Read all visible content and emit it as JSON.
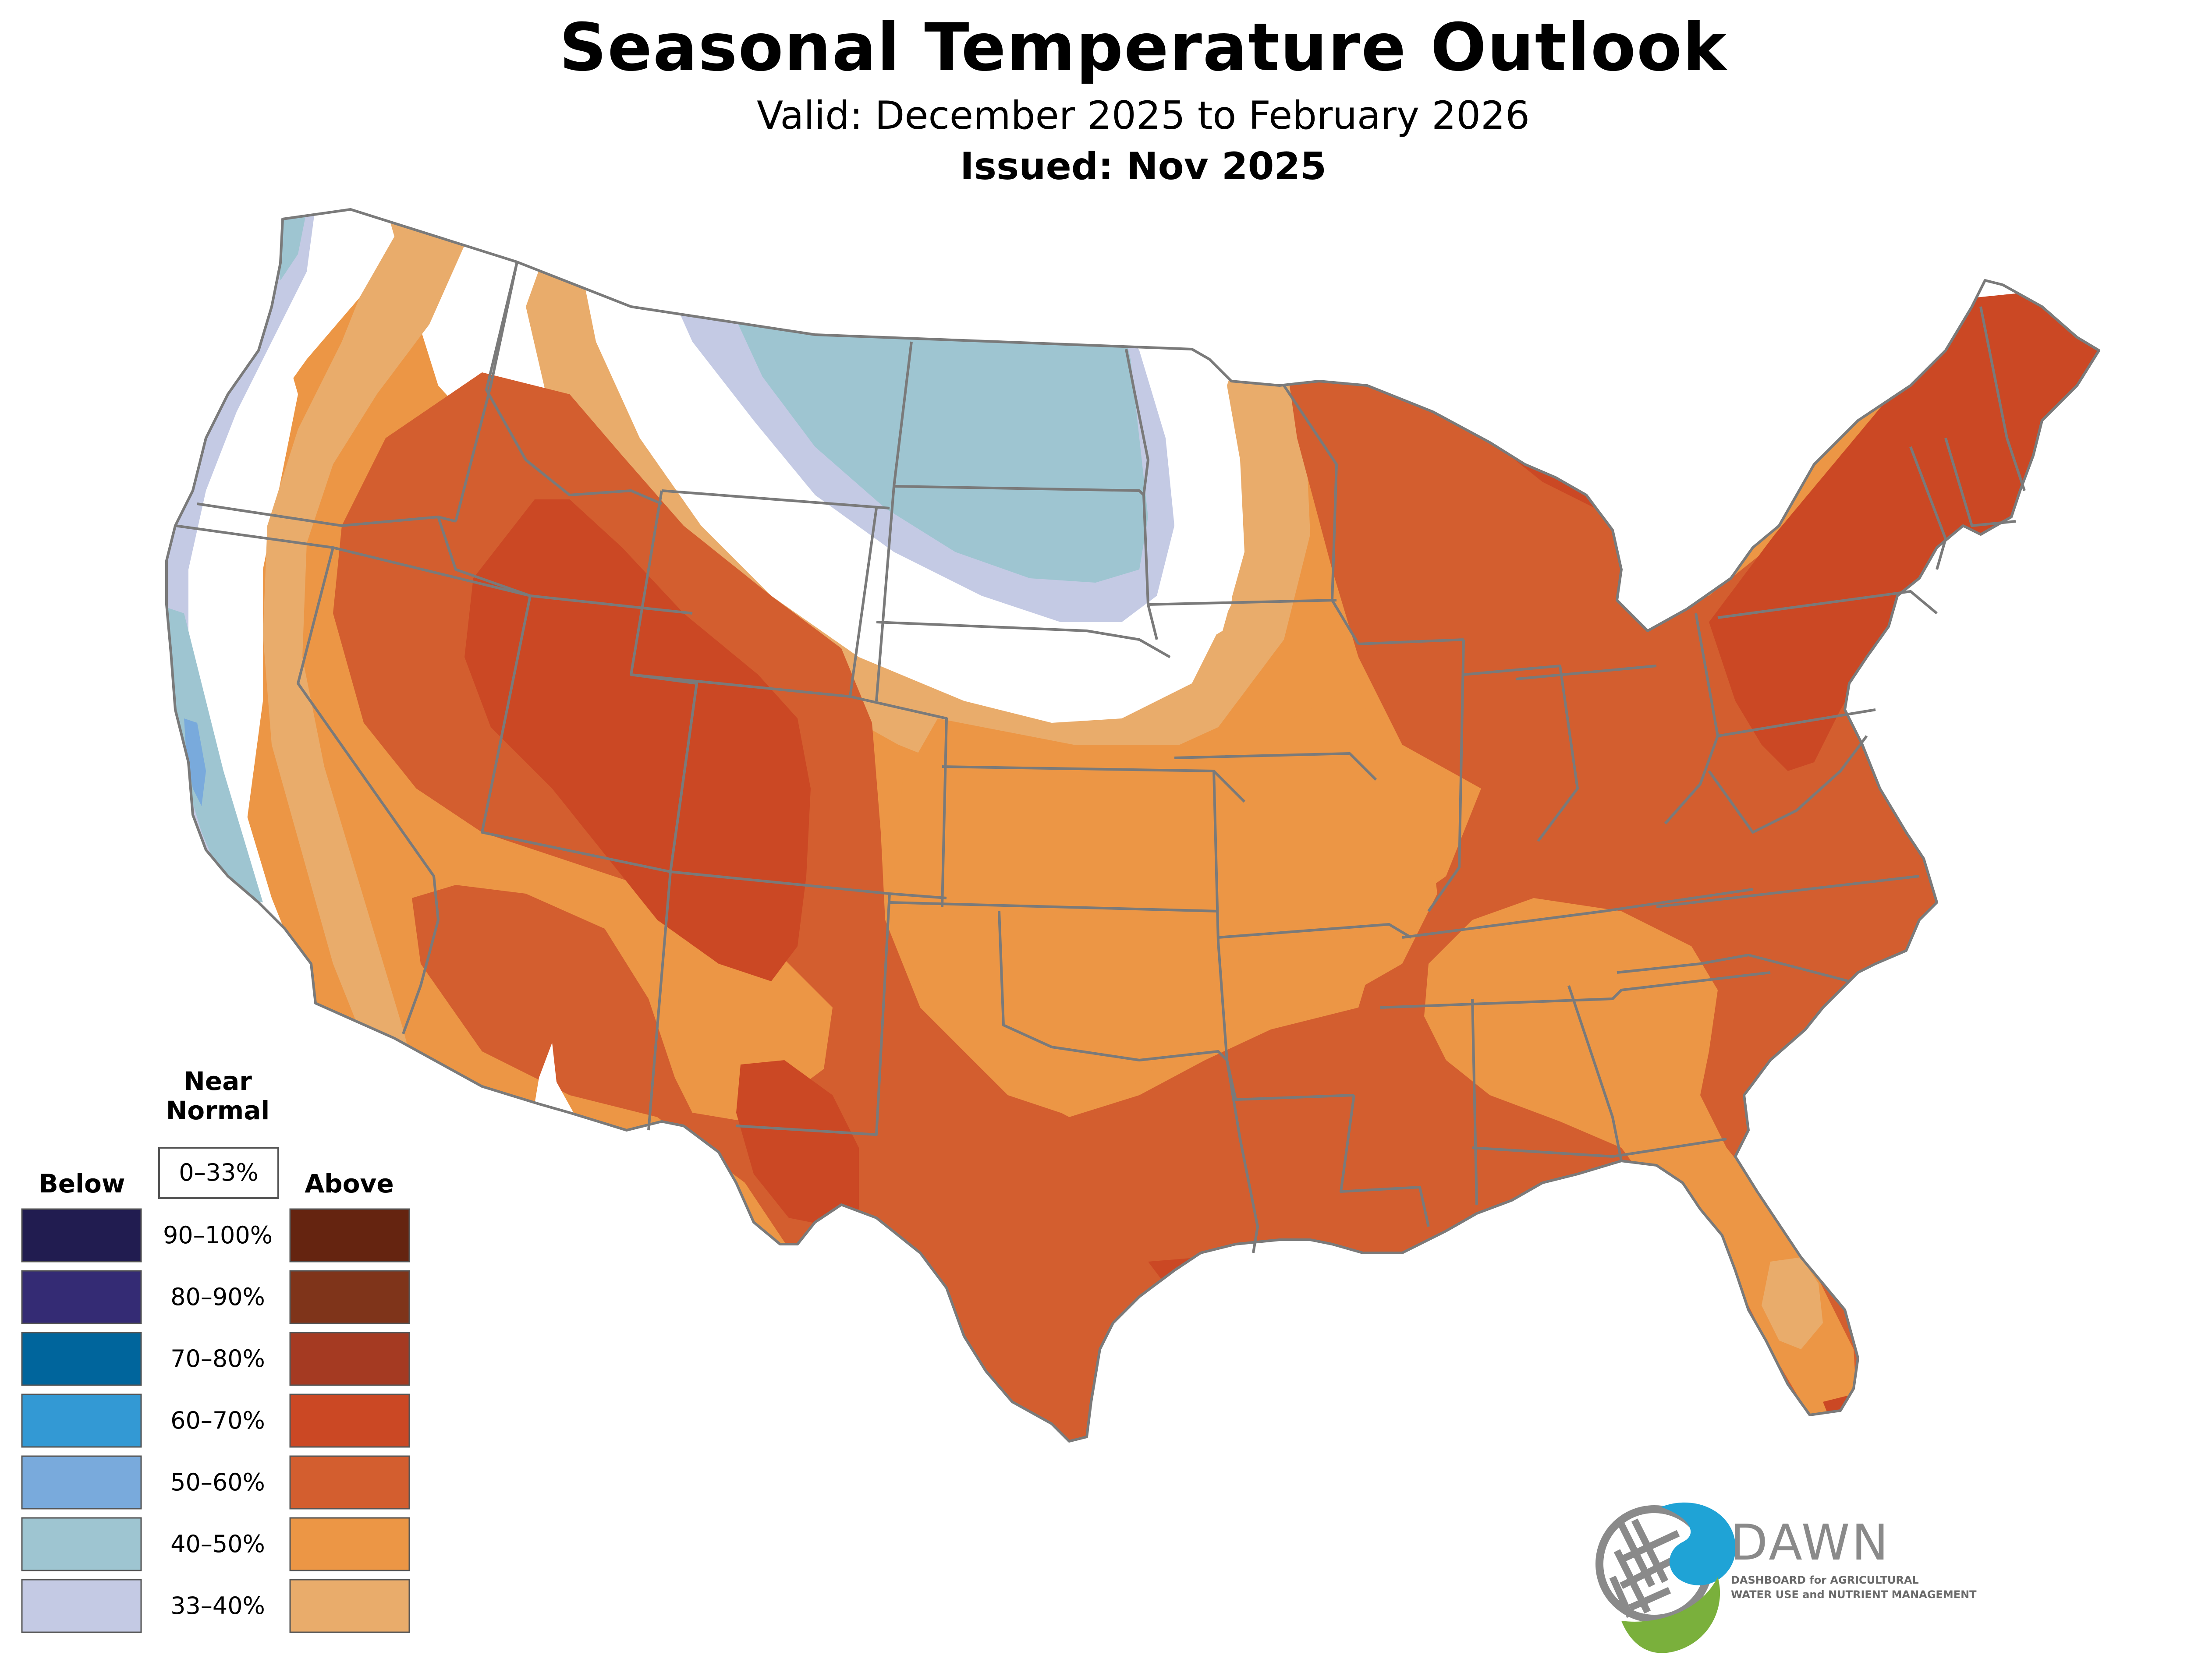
{
  "header": {
    "title": "Seasonal Temperature Outlook",
    "valid": "Valid: December 2025 to February 2026",
    "issued": "Issued: Nov 2025"
  },
  "legend": {
    "near_normal_line1": "Near",
    "near_normal_line2": "Normal",
    "near_normal_range": "0–33%",
    "below_label": "Below",
    "above_label": "Above",
    "rows": [
      {
        "range": "90–100%",
        "below_color": "#211c50",
        "above_color": "#652410"
      },
      {
        "range": "80–90%",
        "below_color": "#342b74",
        "above_color": "#7f341a"
      },
      {
        "range": "70–80%",
        "below_color": "#00659c",
        "above_color": "#a53a22"
      },
      {
        "range": "60–70%",
        "below_color": "#3399d4",
        "above_color": "#cb4824"
      },
      {
        "range": "50–60%",
        "below_color": "#79aadc",
        "above_color": "#d35e2f"
      },
      {
        "range": "40–50%",
        "below_color": "#9ec5d1",
        "above_color": "#ec9645"
      },
      {
        "range": "33–40%",
        "below_color": "#c4cae4",
        "above_color": "#e9ac6b"
      }
    ]
  },
  "map": {
    "colors": {
      "near_normal": "#ffffff",
      "below_33_40": "#c4cae4",
      "below_40_50": "#9ec5d1",
      "below_50_60": "#79aadc",
      "above_33_40": "#e9ac6b",
      "above_40_50": "#ec9645",
      "above_50_60": "#d35e2f",
      "above_60_70": "#cb4824",
      "border": "#7a7a7a"
    }
  },
  "logo": {
    "name": "DAWN",
    "tagline_line1": "DASHBOARD for AGRICULTURAL",
    "tagline_line2": "WATER USE and NUTRIENT MANAGEMENT",
    "colors": {
      "blue": "#1fa3d6",
      "green": "#7ab03c",
      "gray": "#8a8a8a"
    }
  }
}
